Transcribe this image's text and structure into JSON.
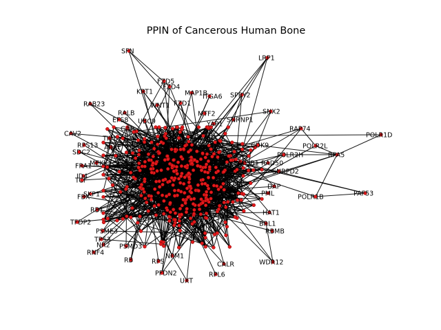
{
  "title": "PPIN of Cancerous Human Bone",
  "colors": {
    "node": "#e31a1c",
    "edge": "#000000",
    "background": "#ffffff"
  },
  "network": {
    "labeled_nodes": [
      "SFN",
      "LRP1",
      "FZD5",
      "FZD4",
      "KRT1",
      "MAP1B",
      "ITGA6",
      "SPRY2",
      "RAB23",
      "WNT1",
      "FZD1",
      "MTF2",
      "SNX2",
      "RALB",
      "EFS8",
      "UBC9",
      "YAP1",
      "SNRNP1",
      "RAP74",
      "POLR1D",
      "CAV2",
      "GAP",
      "CDK9",
      "POLR2L",
      "RPS13",
      "TIP1",
      "SDC2",
      "ARAF",
      "AP3B1",
      "RAD50",
      "POLR2H",
      "RPA5",
      "FRA1",
      "MEKK1",
      "SNRPD2",
      "ID4",
      "TCF",
      "DAP",
      "PML",
      "PAF53",
      "FBX",
      "POLR1B",
      "SKP1",
      "TFDP2",
      "HAT1",
      "RB1",
      "BRL1",
      "RBMB",
      "PSME3",
      "TP53",
      "NR2",
      "RNF4",
      "PSMD3",
      "RB",
      "RPS",
      "UXT",
      "PFDN2",
      "CALR",
      "RPL6",
      "WDR12",
      "NPM1"
    ],
    "unlabeled_node_count": 380
  }
}
